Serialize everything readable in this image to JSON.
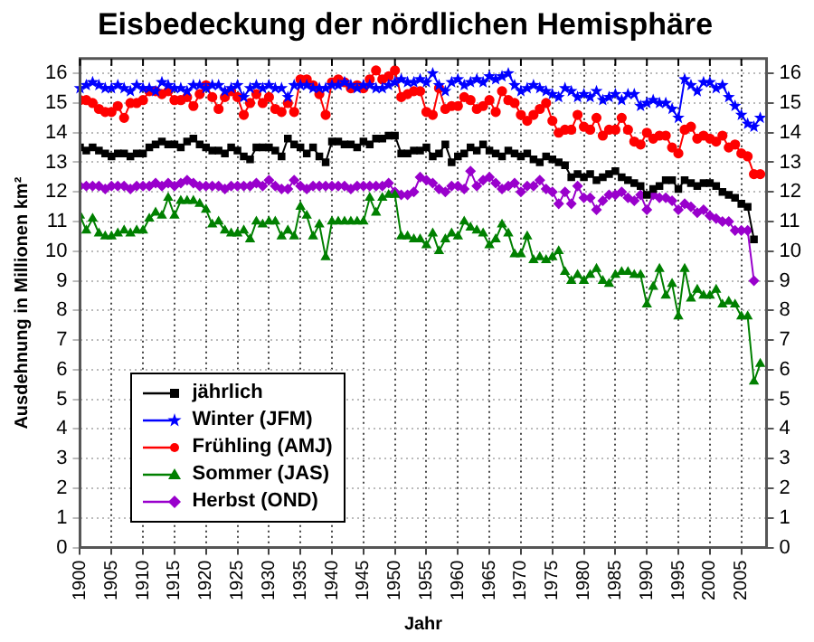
{
  "chart_data": {
    "type": "line",
    "title": "Eisbedeckung der nördlichen Hemisphäre",
    "xlabel": "Jahr",
    "ylabel": "Ausdehnung in Millionen km²",
    "x": [
      1900,
      1901,
      1902,
      1903,
      1904,
      1905,
      1906,
      1907,
      1908,
      1909,
      1910,
      1911,
      1912,
      1913,
      1914,
      1915,
      1916,
      1917,
      1918,
      1919,
      1920,
      1921,
      1922,
      1923,
      1924,
      1925,
      1926,
      1927,
      1928,
      1929,
      1930,
      1931,
      1932,
      1933,
      1934,
      1935,
      1936,
      1937,
      1938,
      1939,
      1940,
      1941,
      1942,
      1943,
      1944,
      1945,
      1946,
      1947,
      1948,
      1949,
      1950,
      1951,
      1952,
      1953,
      1954,
      1955,
      1956,
      1957,
      1958,
      1959,
      1960,
      1961,
      1962,
      1963,
      1964,
      1965,
      1966,
      1967,
      1968,
      1969,
      1970,
      1971,
      1972,
      1973,
      1974,
      1975,
      1976,
      1977,
      1978,
      1979,
      1980,
      1981,
      1982,
      1983,
      1984,
      1985,
      1986,
      1987,
      1988,
      1989,
      1990,
      1991,
      1992,
      1993,
      1994,
      1995,
      1996,
      1997,
      1998,
      1999,
      2000,
      2001,
      2002,
      2003,
      2004,
      2005,
      2006,
      2007,
      2008
    ],
    "series": [
      {
        "name": "jährlich",
        "color": "#000000",
        "marker": "square",
        "values": [
          13.5,
          13.4,
          13.5,
          13.4,
          13.3,
          13.2,
          13.3,
          13.3,
          13.2,
          13.3,
          13.3,
          13.5,
          13.6,
          13.7,
          13.6,
          13.6,
          13.5,
          13.7,
          13.8,
          13.6,
          13.5,
          13.4,
          13.4,
          13.3,
          13.5,
          13.4,
          13.2,
          13.1,
          13.5,
          13.5,
          13.5,
          13.4,
          13.2,
          13.8,
          13.6,
          13.5,
          13.3,
          13.5,
          13.2,
          13.0,
          13.7,
          13.7,
          13.6,
          13.6,
          13.5,
          13.7,
          13.6,
          13.8,
          13.8,
          13.9,
          13.9,
          13.3,
          13.3,
          13.4,
          13.4,
          13.5,
          13.2,
          13.3,
          13.6,
          13.0,
          13.2,
          13.3,
          13.5,
          13.4,
          13.6,
          13.4,
          13.3,
          13.2,
          13.4,
          13.3,
          13.2,
          13.3,
          13.1,
          13.0,
          13.2,
          13.1,
          13.0,
          12.9,
          12.5,
          12.6,
          12.5,
          12.6,
          12.4,
          12.5,
          12.6,
          12.7,
          12.5,
          12.4,
          12.3,
          12.2,
          11.9,
          12.1,
          12.2,
          12.4,
          12.4,
          12.1,
          12.4,
          12.3,
          12.2,
          12.3,
          12.3,
          12.2,
          12.0,
          11.9,
          11.8,
          11.6,
          11.5,
          10.4,
          null
        ]
      },
      {
        "name": "Winter (JFM)",
        "color": "#0000ff",
        "marker": "star",
        "values": [
          15.5,
          15.6,
          15.7,
          15.6,
          15.5,
          15.5,
          15.6,
          15.5,
          15.4,
          15.6,
          15.5,
          15.5,
          15.4,
          15.7,
          15.6,
          15.5,
          15.5,
          15.4,
          15.6,
          15.6,
          15.5,
          15.6,
          15.6,
          15.4,
          15.5,
          15.6,
          15.2,
          15.5,
          15.6,
          15.5,
          15.6,
          15.5,
          15.5,
          15.2,
          15.6,
          15.6,
          15.6,
          15.5,
          15.5,
          15.5,
          15.6,
          15.6,
          15.7,
          15.6,
          15.5,
          15.6,
          15.6,
          15.5,
          15.5,
          15.6,
          15.7,
          15.8,
          15.7,
          15.7,
          15.8,
          15.7,
          16.0,
          15.6,
          15.4,
          15.7,
          15.8,
          15.6,
          15.7,
          15.8,
          15.7,
          15.9,
          15.8,
          15.9,
          16.0,
          15.6,
          15.4,
          15.5,
          15.6,
          15.5,
          15.4,
          15.3,
          15.2,
          15.5,
          15.4,
          15.2,
          15.3,
          15.2,
          15.4,
          15.1,
          15.2,
          15.3,
          15.1,
          15.3,
          15.3,
          14.9,
          15.0,
          15.1,
          15.0,
          15.0,
          14.8,
          14.5,
          15.8,
          15.6,
          15.4,
          15.7,
          15.7,
          15.5,
          15.6,
          15.2,
          14.9,
          14.6,
          14.3,
          14.2,
          14.5
        ]
      },
      {
        "name": "Frühling (AMJ)",
        "color": "#ff0000",
        "marker": "circle",
        "values": [
          15.1,
          15.1,
          15.0,
          14.8,
          14.7,
          14.7,
          14.9,
          14.5,
          15.0,
          15.0,
          15.1,
          15.4,
          15.4,
          15.3,
          15.4,
          15.1,
          15.1,
          15.2,
          14.9,
          15.3,
          15.6,
          15.2,
          14.8,
          15.2,
          15.4,
          15.2,
          14.6,
          15.0,
          15.3,
          15.0,
          15.2,
          14.8,
          14.7,
          15.0,
          14.7,
          15.8,
          15.8,
          15.6,
          15.3,
          14.6,
          15.7,
          15.8,
          15.7,
          15.5,
          15.6,
          15.5,
          15.8,
          16.1,
          15.8,
          15.9,
          16.1,
          15.2,
          15.3,
          15.4,
          15.4,
          14.7,
          14.6,
          15.5,
          14.8,
          14.9,
          14.9,
          15.2,
          15.1,
          14.8,
          14.9,
          15.1,
          14.7,
          15.4,
          15.1,
          15.0,
          14.6,
          14.4,
          14.6,
          14.8,
          15.0,
          14.4,
          14.0,
          14.1,
          14.1,
          14.6,
          14.2,
          14.1,
          14.5,
          13.9,
          14.1,
          14.1,
          14.5,
          14.1,
          13.7,
          13.6,
          14.0,
          13.8,
          13.9,
          13.9,
          13.5,
          13.3,
          14.1,
          14.2,
          13.8,
          13.9,
          13.8,
          13.7,
          13.9,
          13.5,
          13.6,
          13.3,
          13.2,
          12.6,
          12.6
        ]
      },
      {
        "name": "Sommer (JAS)",
        "color": "#008000",
        "marker": "triangle",
        "values": [
          11.2,
          10.7,
          11.1,
          10.6,
          10.5,
          10.5,
          10.6,
          10.7,
          10.6,
          10.7,
          10.7,
          11.1,
          11.3,
          11.2,
          11.8,
          11.2,
          11.7,
          11.7,
          11.7,
          11.6,
          11.4,
          10.9,
          11.0,
          10.7,
          10.6,
          10.6,
          10.7,
          10.4,
          11.0,
          10.9,
          11.0,
          11.0,
          10.5,
          10.7,
          10.5,
          11.5,
          11.2,
          10.5,
          10.9,
          9.8,
          11.0,
          11.0,
          11.0,
          11.0,
          11.0,
          11.0,
          11.8,
          11.3,
          11.8,
          11.9,
          11.9,
          10.5,
          10.5,
          10.4,
          10.4,
          10.2,
          10.6,
          10.0,
          10.4,
          10.6,
          10.5,
          11.0,
          10.8,
          10.7,
          10.6,
          10.2,
          10.4,
          10.9,
          10.6,
          9.9,
          9.9,
          10.5,
          9.7,
          9.8,
          9.7,
          9.8,
          10.0,
          9.3,
          9.0,
          9.2,
          9.0,
          9.2,
          9.4,
          9.0,
          8.9,
          9.2,
          9.3,
          9.3,
          9.2,
          9.2,
          8.2,
          8.8,
          9.4,
          8.5,
          8.9,
          7.8,
          9.4,
          8.4,
          8.7,
          8.5,
          8.5,
          8.7,
          8.2,
          8.3,
          8.2,
          7.8,
          7.8,
          5.6,
          6.2
        ]
      },
      {
        "name": "Herbst (OND)",
        "color": "#9900cc",
        "marker": "diamond",
        "values": [
          12.2,
          12.2,
          12.2,
          12.2,
          12.1,
          12.2,
          12.2,
          12.2,
          12.1,
          12.2,
          12.2,
          12.2,
          12.3,
          12.2,
          12.3,
          12.2,
          12.3,
          12.4,
          12.3,
          12.2,
          12.2,
          12.2,
          12.2,
          12.1,
          12.2,
          12.2,
          12.2,
          12.2,
          12.3,
          12.2,
          12.4,
          12.2,
          12.1,
          12.1,
          12.4,
          12.2,
          12.1,
          12.2,
          12.2,
          12.2,
          12.2,
          12.2,
          12.2,
          12.1,
          12.2,
          12.2,
          12.2,
          12.2,
          12.2,
          12.3,
          12.0,
          11.9,
          11.9,
          12.0,
          12.5,
          12.4,
          12.3,
          12.1,
          12.0,
          12.2,
          12.2,
          12.1,
          12.7,
          12.2,
          12.4,
          12.5,
          12.3,
          12.1,
          12.2,
          12.3,
          12.0,
          12.2,
          12.2,
          12.4,
          12.1,
          12.0,
          11.6,
          12.0,
          11.6,
          12.2,
          11.8,
          11.8,
          11.4,
          11.7,
          11.9,
          11.9,
          12.0,
          11.8,
          11.7,
          11.9,
          11.4,
          11.9,
          11.8,
          11.8,
          11.7,
          11.4,
          11.6,
          11.5,
          11.3,
          11.4,
          11.2,
          11.1,
          11.0,
          11.0,
          10.7,
          10.7,
          10.7,
          9.0,
          null
        ]
      }
    ],
    "xlim": [
      1900,
      2009
    ],
    "xticks": [
      1900,
      1905,
      1910,
      1915,
      1920,
      1925,
      1930,
      1935,
      1940,
      1945,
      1950,
      1955,
      1960,
      1965,
      1970,
      1975,
      1980,
      1985,
      1990,
      1995,
      2000,
      2005
    ],
    "ylim": [
      0,
      16.5
    ],
    "yticks": [
      0,
      1,
      2,
      3,
      4,
      5,
      6,
      7,
      8,
      9,
      10,
      11,
      12,
      13,
      14,
      15,
      16
    ],
    "y2lim": [
      0,
      16.5
    ],
    "y2ticks": [
      0,
      1,
      2,
      3,
      4,
      5,
      6,
      7,
      8,
      9,
      10,
      11,
      12,
      13,
      14,
      15,
      16
    ],
    "grid": true,
    "legend": "bottom left",
    "line_style": "solid"
  }
}
